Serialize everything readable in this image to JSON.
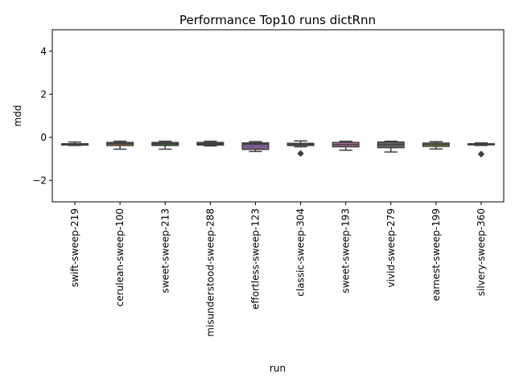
{
  "chart_data": {
    "type": "box",
    "title": "Performance Top10 runs dictRnn",
    "xlabel": "run",
    "ylabel": "mdd",
    "ylim": [
      -3,
      5
    ],
    "yticks": [
      -2,
      0,
      2,
      4
    ],
    "grid": false,
    "categories": [
      "swift-sweep-219",
      "cerulean-sweep-100",
      "sweet-sweep-213",
      "misunderstood-sweep-288",
      "effortless-sweep-123",
      "classic-sweep-304",
      "sweet-sweep-193",
      "vivid-sweep-279",
      "earnest-sweep-199",
      "silvery-sweep-360"
    ],
    "colors": [
      "#3274a1",
      "#e1812c",
      "#3a923a",
      "#c03d3e",
      "#9372b2",
      "#845b53",
      "#d684bd",
      "#7f7f7f",
      "#a9aa35",
      "#2ea0b1"
    ],
    "boxes": [
      {
        "whisker_low": -0.38,
        "q1": -0.36,
        "median": -0.33,
        "q3": -0.3,
        "whisker_high": -0.22,
        "outliers": []
      },
      {
        "whisker_low": -0.55,
        "q1": -0.38,
        "median": -0.3,
        "q3": -0.24,
        "whisker_high": -0.18,
        "outliers": []
      },
      {
        "whisker_low": -0.55,
        "q1": -0.38,
        "median": -0.3,
        "q3": -0.24,
        "whisker_high": -0.18,
        "outliers": []
      },
      {
        "whisker_low": -0.4,
        "q1": -0.36,
        "median": -0.3,
        "q3": -0.24,
        "whisker_high": -0.18,
        "outliers": []
      },
      {
        "whisker_low": -0.66,
        "q1": -0.56,
        "median": -0.32,
        "q3": -0.26,
        "whisker_high": -0.2,
        "outliers": []
      },
      {
        "whisker_low": -0.44,
        "q1": -0.38,
        "median": -0.32,
        "q3": -0.28,
        "whisker_high": -0.17,
        "outliers": [
          -0.75
        ]
      },
      {
        "whisker_low": -0.6,
        "q1": -0.44,
        "median": -0.34,
        "q3": -0.24,
        "whisker_high": -0.18,
        "outliers": []
      },
      {
        "whisker_low": -0.68,
        "q1": -0.48,
        "median": -0.34,
        "q3": -0.22,
        "whisker_high": -0.18,
        "outliers": []
      },
      {
        "whisker_low": -0.54,
        "q1": -0.42,
        "median": -0.33,
        "q3": -0.27,
        "whisker_high": -0.2,
        "outliers": []
      },
      {
        "whisker_low": -0.38,
        "q1": -0.35,
        "median": -0.33,
        "q3": -0.3,
        "whisker_high": -0.26,
        "outliers": [
          -0.78
        ]
      }
    ]
  }
}
